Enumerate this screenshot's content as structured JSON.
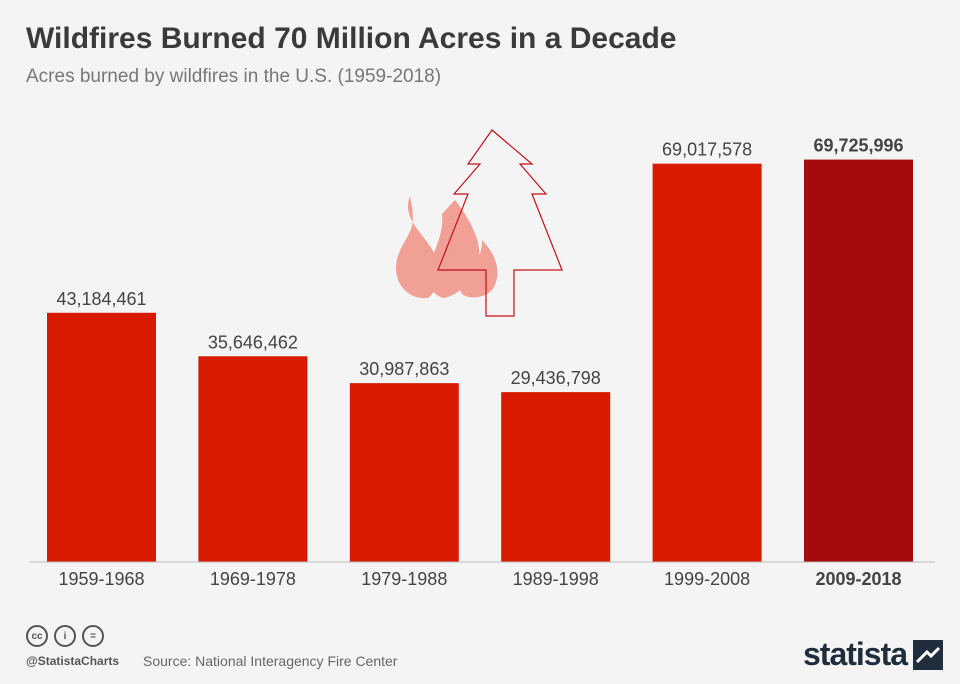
{
  "title": "Wildfires Burned 70 Million Acres in a Decade",
  "subtitle": "Acres burned by wildfires in the U.S. (1959-2018)",
  "footer": {
    "handle": "@StatistaCharts",
    "source": "Source: National Interagency Fire Center",
    "brand": "statista",
    "license_icons": [
      "cc-icon",
      "attribution-icon",
      "no-derivatives-icon"
    ],
    "license_glyphs": [
      "cc",
      "i",
      "="
    ]
  },
  "colors": {
    "bar": "#d81b00",
    "highlight_bar": "#a30a0a",
    "flame": "#f0a095",
    "tree_outline": "#c0101b",
    "text": "#444444"
  },
  "chart_data": {
    "type": "bar",
    "categories": [
      "1959-1968",
      "1969-1978",
      "1979-1988",
      "1989-1998",
      "1999-2008",
      "2009-2018"
    ],
    "values": [
      43184461,
      35646462,
      30987863,
      29436798,
      69017578,
      69725996
    ],
    "value_labels": [
      "43,184,461",
      "35,646,462",
      "30,987,863",
      "29,436,798",
      "69,017,578",
      "69,725,996"
    ],
    "highlight_index": 5,
    "title": "Wildfires Burned 70 Million Acres in a Decade",
    "subtitle": "Acres burned by wildfires in the U.S. (1959-2018)",
    "xlabel": "",
    "ylabel": "",
    "ylim": [
      0,
      70000000
    ],
    "grid": false,
    "legend": "none"
  }
}
